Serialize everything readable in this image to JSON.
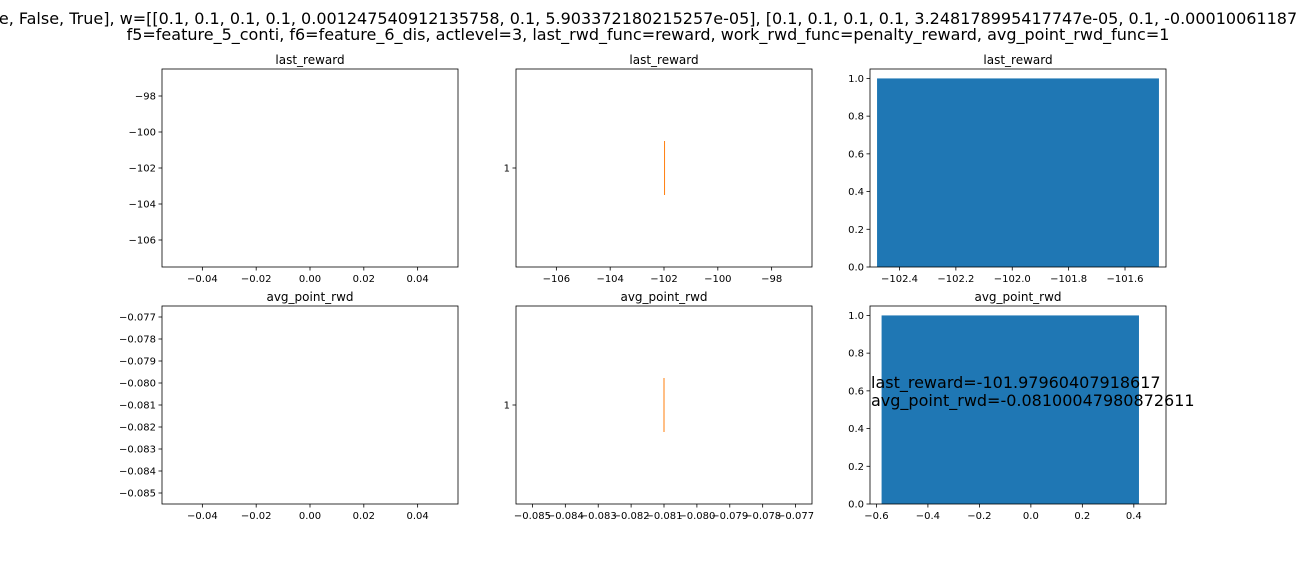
{
  "suptitle": {
    "line1": "e, False, True], w=[[0.1, 0.1, 0.1, 0.1, 0.001247540912135758, 0.1, 5.903372180215257e-05], [0.1, 0.1, 0.1, 0.1, 3.248178995417747e-05, 0.1, -0.00010061187",
    "line2": "f5=feature_5_conti, f6=feature_6_dis, actlevel=3, last_rwd_func=reward, work_rwd_func=penalty_reward, avg_point_rwd_func=1"
  },
  "colors": {
    "bar": "#1f77b4",
    "line": "#ff7f0e",
    "axis": "#000000"
  },
  "chart_data": [
    {
      "id": "last-reward-empty",
      "type": "line",
      "title": "last_reward",
      "xlabel": "",
      "ylabel": "",
      "xlim": [
        -0.055,
        0.055
      ],
      "ylim": [
        -107.5,
        -96.5
      ],
      "xticks": [
        {
          "v": -0.04,
          "label": "−0.04"
        },
        {
          "v": -0.02,
          "label": "−0.02"
        },
        {
          "v": 0.0,
          "label": "0.00"
        },
        {
          "v": 0.02,
          "label": "0.02"
        },
        {
          "v": 0.04,
          "label": "0.04"
        }
      ],
      "yticks": [
        {
          "v": -98,
          "label": "−98"
        },
        {
          "v": -100,
          "label": "−100"
        },
        {
          "v": -102,
          "label": "−102"
        },
        {
          "v": -104,
          "label": "−104"
        },
        {
          "v": -106,
          "label": "−106"
        }
      ],
      "series": [],
      "grid": false
    },
    {
      "id": "last-reward-line",
      "type": "line",
      "title": "last_reward",
      "xlabel": "",
      "ylabel": "",
      "xlim": [
        -107.5,
        -96.5
      ],
      "ylim": [
        0.945,
        1.055
      ],
      "xticks": [
        {
          "v": -106,
          "label": "−106"
        },
        {
          "v": -104,
          "label": "−104"
        },
        {
          "v": -102,
          "label": "−102"
        },
        {
          "v": -100,
          "label": "−100"
        },
        {
          "v": -98,
          "label": "−98"
        }
      ],
      "yticks": [
        {
          "v": 1,
          "label": "1"
        }
      ],
      "series": [
        {
          "x": [
            -101.98,
            -101.98
          ],
          "y": [
            0.985,
            1.015
          ]
        }
      ],
      "grid": false
    },
    {
      "id": "last-reward-bar",
      "type": "bar",
      "title": "last_reward",
      "xlabel": "",
      "ylabel": "",
      "xlim": [
        -102.5046,
        -101.4546
      ],
      "ylim": [
        0,
        1.05
      ],
      "xticks": [
        {
          "v": -102.4,
          "label": "−102.4"
        },
        {
          "v": -102.2,
          "label": "−102.2"
        },
        {
          "v": -102.0,
          "label": "−102.0"
        },
        {
          "v": -101.8,
          "label": "−101.8"
        },
        {
          "v": -101.6,
          "label": "−101.6"
        }
      ],
      "yticks": [
        {
          "v": 0.0,
          "label": "0.0"
        },
        {
          "v": 0.2,
          "label": "0.2"
        },
        {
          "v": 0.4,
          "label": "0.4"
        },
        {
          "v": 0.6,
          "label": "0.6"
        },
        {
          "v": 0.8,
          "label": "0.8"
        },
        {
          "v": 1.0,
          "label": "1.0"
        }
      ],
      "bars": [
        {
          "x0": -102.4796,
          "x1": -101.4796,
          "value": 1.0
        }
      ],
      "grid": false
    },
    {
      "id": "avg-point-empty",
      "type": "line",
      "title": "avg_point_rwd",
      "xlabel": "",
      "ylabel": "",
      "xlim": [
        -0.055,
        0.055
      ],
      "ylim": [
        -0.0855,
        -0.0765
      ],
      "xticks": [
        {
          "v": -0.04,
          "label": "−0.04"
        },
        {
          "v": -0.02,
          "label": "−0.02"
        },
        {
          "v": 0.0,
          "label": "0.00"
        },
        {
          "v": 0.02,
          "label": "0.02"
        },
        {
          "v": 0.04,
          "label": "0.04"
        }
      ],
      "yticks": [
        {
          "v": -0.077,
          "label": "−0.077"
        },
        {
          "v": -0.078,
          "label": "−0.078"
        },
        {
          "v": -0.079,
          "label": "−0.079"
        },
        {
          "v": -0.08,
          "label": "−0.080"
        },
        {
          "v": -0.081,
          "label": "−0.081"
        },
        {
          "v": -0.082,
          "label": "−0.082"
        },
        {
          "v": -0.083,
          "label": "−0.083"
        },
        {
          "v": -0.084,
          "label": "−0.084"
        },
        {
          "v": -0.085,
          "label": "−0.085"
        }
      ],
      "series": [],
      "grid": false
    },
    {
      "id": "avg-point-line",
      "type": "line",
      "title": "avg_point_rwd",
      "xlabel": "",
      "ylabel": "",
      "xlim": [
        -0.0855,
        -0.0765
      ],
      "ylim": [
        0.945,
        1.055
      ],
      "xticks": [
        {
          "v": -0.085,
          "label": "−0.085"
        },
        {
          "v": -0.084,
          "label": "−0.084"
        },
        {
          "v": -0.083,
          "label": "−0.083"
        },
        {
          "v": -0.082,
          "label": "−0.082"
        },
        {
          "v": -0.081,
          "label": "−0.081"
        },
        {
          "v": -0.08,
          "label": "−0.080"
        },
        {
          "v": -0.079,
          "label": "−0.079"
        },
        {
          "v": -0.078,
          "label": "−0.078"
        },
        {
          "v": -0.077,
          "label": "−0.077"
        }
      ],
      "yticks": [
        {
          "v": 1,
          "label": "1"
        }
      ],
      "series": [
        {
          "x": [
            -0.081,
            -0.081
          ],
          "y": [
            0.985,
            1.015
          ]
        }
      ],
      "grid": false
    },
    {
      "id": "avg-point-bar",
      "type": "bar",
      "title": "avg_point_rwd",
      "xlabel": "",
      "ylabel": "",
      "xlim": [
        -0.625,
        0.525
      ],
      "ylim": [
        0,
        1.05
      ],
      "xticks": [
        {
          "v": -0.6,
          "label": "−0.6"
        },
        {
          "v": -0.4,
          "label": "−0.4"
        },
        {
          "v": -0.2,
          "label": "−0.2"
        },
        {
          "v": 0.0,
          "label": "0.0"
        },
        {
          "v": 0.2,
          "label": "0.2"
        },
        {
          "v": 0.4,
          "label": "0.4"
        }
      ],
      "yticks": [
        {
          "v": 0.0,
          "label": "0.0"
        },
        {
          "v": 0.2,
          "label": "0.2"
        },
        {
          "v": 0.4,
          "label": "0.4"
        },
        {
          "v": 0.6,
          "label": "0.6"
        },
        {
          "v": 0.8,
          "label": "0.8"
        },
        {
          "v": 1.0,
          "label": "1.0"
        }
      ],
      "bars": [
        {
          "x0": -0.58,
          "x1": 0.42,
          "value": 1.0
        }
      ],
      "annotations": [
        "last_reward=-101.97960407918617",
        "avg_point_rwd=-0.08100047980872611"
      ],
      "grid": false
    }
  ]
}
